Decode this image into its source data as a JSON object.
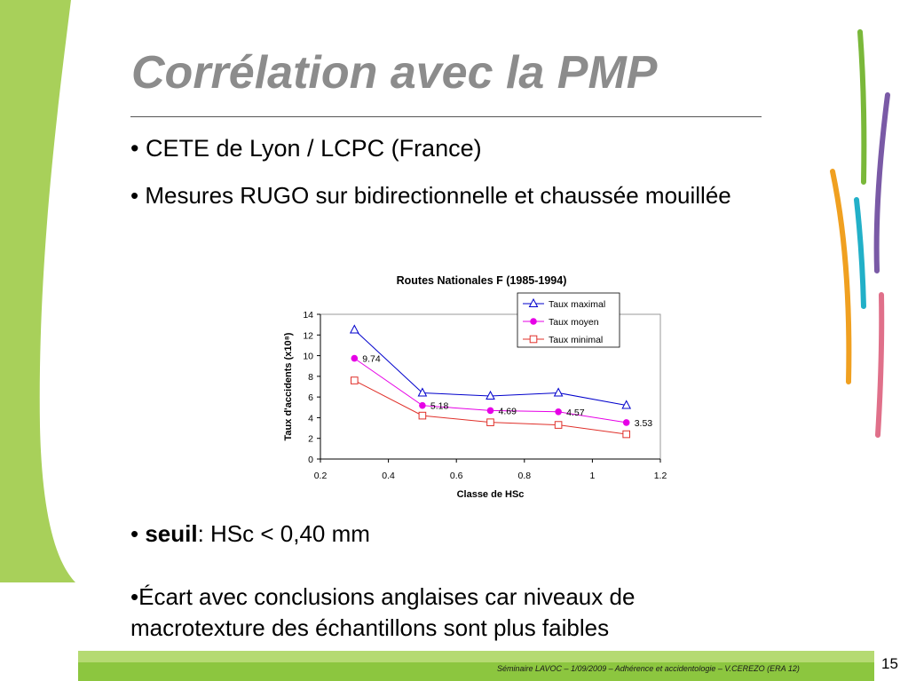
{
  "slide": {
    "title": "Corrélation avec la PMP",
    "bullet1": "CETE de Lyon / LCPC (France)",
    "bullet2": "• Mesures RUGO sur bidirectionnelle et chaussée mouillée",
    "bullet3_strong": "seuil",
    "bullet3_rest": ": HSc < 0,40 mm",
    "bullet4": "•Écart avec conclusions anglaises car niveaux de macrotexture des échantillons sont plus faibles",
    "footer": "Séminaire LAVOC – 1/09/2009 – Adhérence et accidentologie – V.CEREZO (ERA 12)",
    "page": "15"
  },
  "colors": {
    "green_light": "#a8d05a",
    "green_bar": "#8cc63f",
    "blue": "#0000cc",
    "magenta": "#e600e6",
    "red": "#e0302a"
  },
  "chart_data": {
    "type": "line",
    "title": "Routes Nationales F (1985-1994)",
    "xlabel": "Classe de HSc",
    "ylabel": "Taux d'accidents (x10⁸)",
    "xlim": [
      0.2,
      1.2
    ],
    "ylim": [
      0,
      14
    ],
    "x_ticks": [
      "0.2",
      "0.4",
      "0.6",
      "0.8",
      "1",
      "1.2"
    ],
    "y_ticks": [
      "0",
      "2",
      "4",
      "6",
      "8",
      "10",
      "12",
      "14"
    ],
    "legend_position": "top-right",
    "grid": false,
    "x": [
      0.3,
      0.5,
      0.7,
      0.9,
      1.1
    ],
    "series": [
      {
        "name": "Taux maximal",
        "marker": "triangle",
        "color": "#0000cc",
        "values": [
          12.5,
          6.4,
          6.1,
          6.4,
          5.2
        ]
      },
      {
        "name": "Taux moyen",
        "marker": "circle",
        "color": "#e600e6",
        "values": [
          9.74,
          5.18,
          4.69,
          4.57,
          3.53
        ],
        "labels": [
          "9.74",
          "5.18",
          "4.69",
          "4.57",
          "3.53"
        ]
      },
      {
        "name": "Taux minimal",
        "marker": "square",
        "color": "#e0302a",
        "values": [
          7.6,
          4.2,
          3.55,
          3.3,
          2.4
        ]
      }
    ]
  }
}
